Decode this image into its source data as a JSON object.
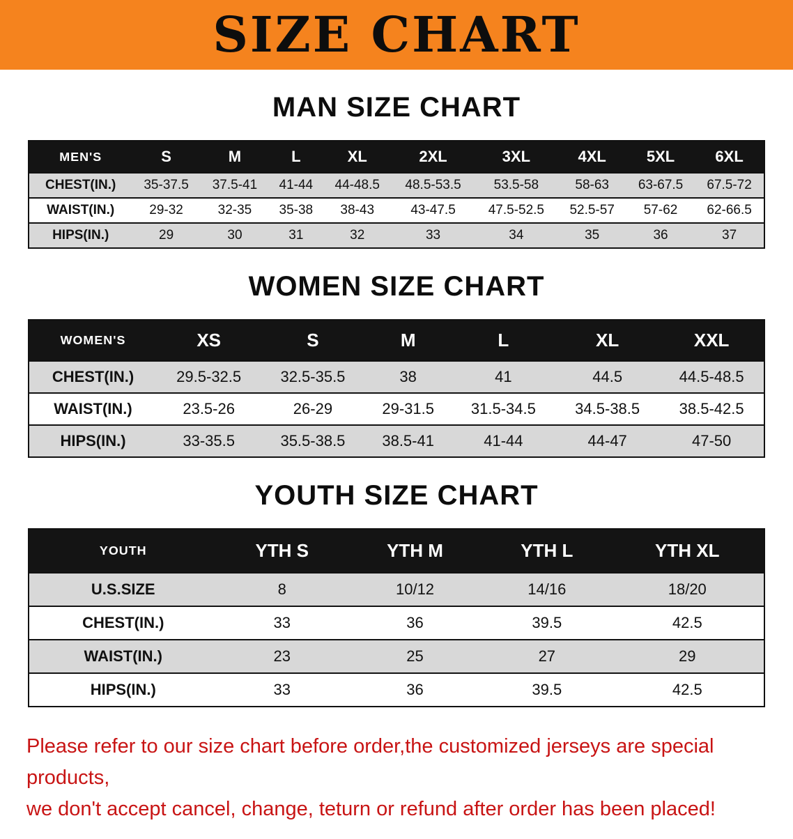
{
  "colors": {
    "banner_bg": "#F5831E",
    "table_header_bg": "#141414",
    "row_stripe": "#D8D8D8",
    "disclaimer_color": "#C81414"
  },
  "banner": {
    "title": "SIZE CHART"
  },
  "sections": [
    {
      "id": "men",
      "heading": "MAN SIZE CHART",
      "table": {
        "header": [
          "MEN'S",
          "S",
          "M",
          "L",
          "XL",
          "2XL",
          "3XL",
          "4XL",
          "5XL",
          "6XL"
        ],
        "rows": [
          [
            "CHEST(IN.)",
            "35-37.5",
            "37.5-41",
            "41-44",
            "44-48.5",
            "48.5-53.5",
            "53.5-58",
            "58-63",
            "63-67.5",
            "67.5-72"
          ],
          [
            "WAIST(IN.)",
            "29-32",
            "32-35",
            "35-38",
            "38-43",
            "43-47.5",
            "47.5-52.5",
            "52.5-57",
            "57-62",
            "62-66.5"
          ],
          [
            "HIPS(IN.)",
            "29",
            "30",
            "31",
            "32",
            "33",
            "34",
            "35",
            "36",
            "37"
          ]
        ]
      }
    },
    {
      "id": "women",
      "heading": "WOMEN SIZE CHART",
      "table": {
        "header": [
          "WOMEN'S",
          "XS",
          "S",
          "M",
          "L",
          "XL",
          "XXL"
        ],
        "rows": [
          [
            "CHEST(IN.)",
            "29.5-32.5",
            "32.5-35.5",
            "38",
            "41",
            "44.5",
            "44.5-48.5"
          ],
          [
            "WAIST(IN.)",
            "23.5-26",
            "26-29",
            "29-31.5",
            "31.5-34.5",
            "34.5-38.5",
            "38.5-42.5"
          ],
          [
            "HIPS(IN.)",
            "33-35.5",
            "35.5-38.5",
            "38.5-41",
            "41-44",
            "44-47",
            "47-50"
          ]
        ]
      }
    },
    {
      "id": "youth",
      "heading": "YOUTH SIZE CHART",
      "table": {
        "header": [
          "YOUTH",
          "YTH S",
          "YTH M",
          "YTH L",
          "YTH XL"
        ],
        "rows": [
          [
            "U.S.SIZE",
            "8",
            "10/12",
            "14/16",
            "18/20"
          ],
          [
            "CHEST(IN.)",
            "33",
            "36",
            "39.5",
            "42.5"
          ],
          [
            "WAIST(IN.)",
            "23",
            "25",
            "27",
            "29"
          ],
          [
            "HIPS(IN.)",
            "33",
            "36",
            "39.5",
            "42.5"
          ]
        ]
      }
    }
  ],
  "disclaimer": {
    "lines": [
      "Please refer to our size chart before order,the customized jerseys are special products,",
      "we don't accept cancel, change, teturn or refund after order has been placed!"
    ]
  }
}
